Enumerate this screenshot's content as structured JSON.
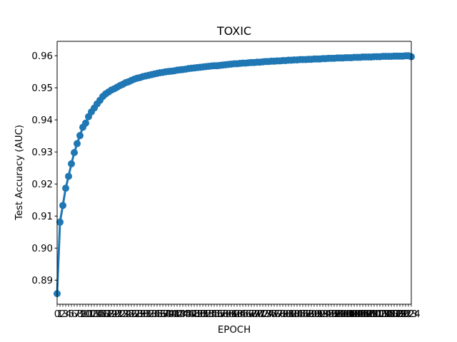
{
  "chart_data": {
    "type": "line",
    "title": "TOXIC",
    "xlabel": "EPOCH",
    "ylabel": "Test Accuracy (AUC)",
    "xlim": [
      0,
      124
    ],
    "ylim": [
      0.8825,
      0.9645
    ],
    "yticks": [
      0.89,
      0.9,
      0.91,
      0.92,
      0.93,
      0.94,
      0.95,
      0.96
    ],
    "yticks_text": [
      "0.89",
      "0.90",
      "0.91",
      "0.92",
      "0.93",
      "0.94",
      "0.95",
      "0.96"
    ],
    "grid": false,
    "series": [
      {
        "color": "#1f77b4",
        "marker": "circle",
        "x": [
          0,
          1,
          2,
          3,
          4,
          5,
          6,
          7,
          8,
          9,
          10,
          11,
          12,
          13,
          14,
          15,
          16,
          17,
          18,
          19,
          20,
          21,
          22,
          23,
          24,
          25,
          26,
          27,
          28,
          29,
          30,
          31,
          32,
          33,
          34,
          35,
          36,
          37,
          38,
          39,
          40,
          41,
          42,
          43,
          44,
          45,
          46,
          47,
          48,
          49,
          50,
          51,
          52,
          53,
          54,
          55,
          56,
          57,
          58,
          59,
          60,
          61,
          62,
          63,
          64,
          65,
          66,
          67,
          68,
          69,
          70,
          71,
          72,
          73,
          74,
          75,
          76,
          77,
          78,
          79,
          80,
          81,
          82,
          83,
          84,
          85,
          86,
          87,
          88,
          89,
          90,
          91,
          92,
          93,
          94,
          95,
          96,
          97,
          98,
          99,
          100,
          101,
          102,
          103,
          104,
          105,
          106,
          107,
          108,
          109,
          110,
          111,
          112,
          113,
          114,
          115,
          116,
          117,
          118,
          119,
          120,
          121,
          122,
          123,
          124
        ],
        "values": [
          0.8858,
          0.9081,
          0.9133,
          0.9187,
          0.9224,
          0.9263,
          0.9298,
          0.9326,
          0.9351,
          0.9377,
          0.939,
          0.941,
          0.9425,
          0.9437,
          0.945,
          0.9461,
          0.9473,
          0.9481,
          0.9487,
          0.9493,
          0.9497,
          0.9502,
          0.9507,
          0.9511,
          0.9516,
          0.9519,
          0.9523,
          0.9527,
          0.953,
          0.9532,
          0.9535,
          0.9537,
          0.9539,
          0.9541,
          0.9543,
          0.9545,
          0.9547,
          0.9548,
          0.955,
          0.9551,
          0.9552,
          0.9553,
          0.9555,
          0.9556,
          0.9557,
          0.9558,
          0.956,
          0.9561,
          0.9562,
          0.9563,
          0.9564,
          0.9565,
          0.9566,
          0.9567,
          0.9568,
          0.9569,
          0.9569,
          0.957,
          0.9571,
          0.9572,
          0.9573,
          0.9574,
          0.9575,
          0.9575,
          0.9576,
          0.9577,
          0.9577,
          0.9578,
          0.9579,
          0.9579,
          0.958,
          0.958,
          0.9581,
          0.9582,
          0.9582,
          0.9583,
          0.9583,
          0.9584,
          0.9584,
          0.9585,
          0.9585,
          0.9586,
          0.9586,
          0.9587,
          0.9587,
          0.9588,
          0.9588,
          0.9588,
          0.9589,
          0.9589,
          0.959,
          0.959,
          0.959,
          0.9591,
          0.9591,
          0.9592,
          0.9592,
          0.9592,
          0.9593,
          0.9593,
          0.9593,
          0.9594,
          0.9594,
          0.9594,
          0.9595,
          0.9595,
          0.9595,
          0.9596,
          0.9596,
          0.9596,
          0.9596,
          0.9597,
          0.9597,
          0.9597,
          0.9598,
          0.9598,
          0.9598,
          0.9598,
          0.9599,
          0.9599,
          0.9599,
          0.9599,
          0.96,
          0.96,
          0.9597
        ]
      }
    ]
  }
}
